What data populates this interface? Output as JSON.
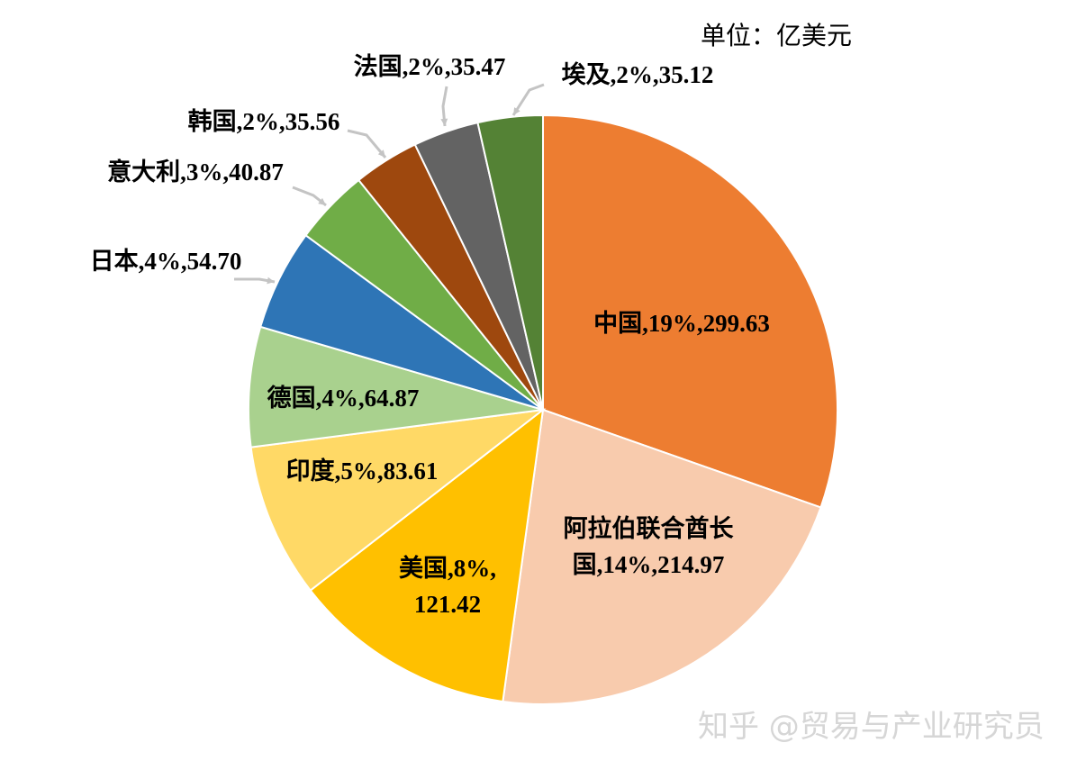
{
  "unit_label": "单位：亿美元",
  "watermark": "知乎 @贸易与产业研究员",
  "chart_data": {
    "type": "pie",
    "start": "12 o'clock, clockwise",
    "slices": [
      {
        "name": "中国",
        "percent": "19%",
        "value": 299.63,
        "color": "#ED7D31",
        "label_lines": [
          "中国,19%,299.63"
        ]
      },
      {
        "name": "阿拉伯联合酋长国",
        "percent": "14%",
        "value": 214.97,
        "color": "#F8CBAD",
        "label_lines": [
          "阿拉伯联合酋长",
          "国,14%,214.97"
        ]
      },
      {
        "name": "美国",
        "percent": "8%",
        "value": 121.42,
        "color": "#FFC000",
        "label_lines": [
          "美国,8%,",
          "121.42"
        ]
      },
      {
        "name": "印度",
        "percent": "5%",
        "value": 83.61,
        "color": "#FFD966",
        "label_lines": [
          "印度,5%,83.61"
        ]
      },
      {
        "name": "德国",
        "percent": "4%",
        "value": 64.87,
        "color": "#A9D18E",
        "label_lines": [
          "德国,4%,64.87"
        ]
      },
      {
        "name": "日本",
        "percent": "4%",
        "value": 54.7,
        "color": "#2E75B6",
        "label_lines": [
          "日本,4%,54.70"
        ]
      },
      {
        "name": "意大利",
        "percent": "3%",
        "value": 40.87,
        "color": "#70AD47",
        "label_lines": [
          "意大利,3%,40.87"
        ]
      },
      {
        "name": "韩国",
        "percent": "2%",
        "value": 35.56,
        "color": "#9E480E",
        "label_lines": [
          "韩国,2%,35.56"
        ]
      },
      {
        "name": "法国",
        "percent": "2%",
        "value": 35.47,
        "color": "#636363",
        "label_lines": [
          "法国,2%,35.47"
        ]
      },
      {
        "name": "埃及",
        "percent": "2%",
        "value": 35.12,
        "color": "#548235",
        "label_lines": [
          "埃及,2%,35.12"
        ]
      }
    ]
  }
}
